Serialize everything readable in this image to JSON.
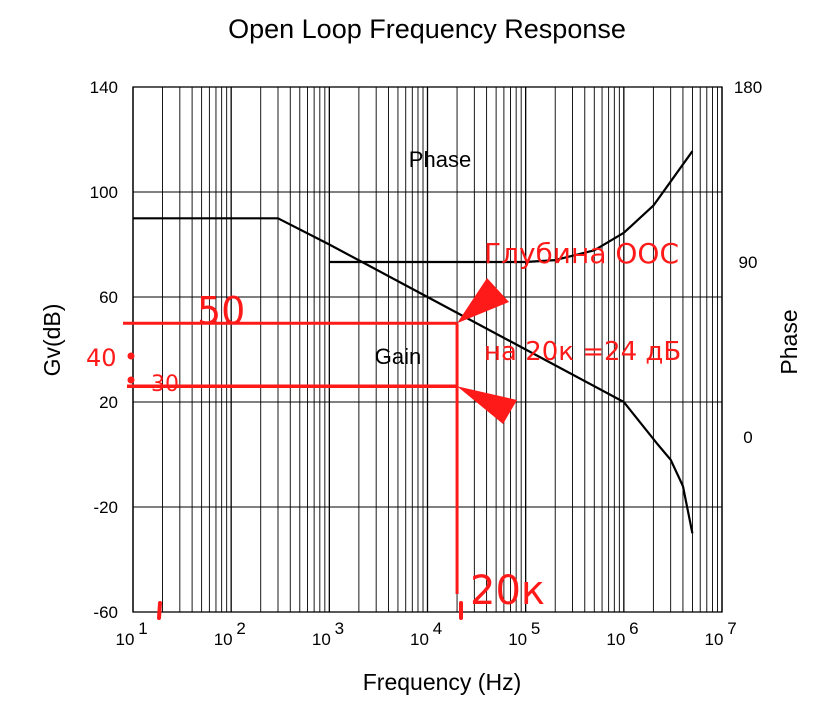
{
  "chart_data": {
    "type": "line",
    "title": "Open Loop Frequency Response",
    "xlabel": "Frequency (Hz)",
    "ylabel": "Gv(dB)",
    "y2label": "Phase",
    "x_scale": "log",
    "xlim": [
      10,
      10000000
    ],
    "ylim": [
      -60,
      140
    ],
    "y2lim": [
      -90,
      180
    ],
    "x_ticks": [
      {
        "base": "10",
        "exp": "1",
        "value": 10
      },
      {
        "base": "10",
        "exp": "2",
        "value": 100
      },
      {
        "base": "10",
        "exp": "3",
        "value": 1000
      },
      {
        "base": "10",
        "exp": "4",
        "value": 10000
      },
      {
        "base": "10",
        "exp": "5",
        "value": 100000
      },
      {
        "base": "10",
        "exp": "6",
        "value": 1000000
      },
      {
        "base": "10",
        "exp": "7",
        "value": 10000000
      }
    ],
    "y_ticks": [
      "140",
      "100",
      "60",
      "20",
      "-20",
      "-60"
    ],
    "y_tick_values": [
      140,
      100,
      60,
      20,
      -20,
      -60
    ],
    "y2_ticks": [
      "180",
      "90",
      "0"
    ],
    "y2_tick_values": [
      180,
      90,
      0
    ],
    "grid": true,
    "series": [
      {
        "name": "Gain",
        "axis": "left",
        "x": [
          10,
          300,
          1000,
          10000,
          100000,
          1000000,
          2200000,
          3000000,
          4000000,
          5000000
        ],
        "values": [
          90,
          90,
          80,
          60,
          40,
          20,
          4,
          -2,
          -12,
          -30
        ]
      },
      {
        "name": "Phase",
        "axis": "right",
        "x": [
          1000,
          10000,
          100000,
          200000,
          500000,
          1000000,
          2000000,
          5000000
        ],
        "values": [
          90,
          90,
          90,
          91,
          96,
          105,
          119,
          147
        ]
      }
    ],
    "annotations": {
      "color": "#ff1a1a",
      "texts": {
        "v50": "50",
        "v40": "40",
        "v30": "30",
        "depth_line1": "Глубина ООС",
        "depth_line2": "на 20к =24 дБ",
        "freq": "20к"
      },
      "level_high_db": 50,
      "level_low_db": 26,
      "freq_hz": 20000
    }
  }
}
